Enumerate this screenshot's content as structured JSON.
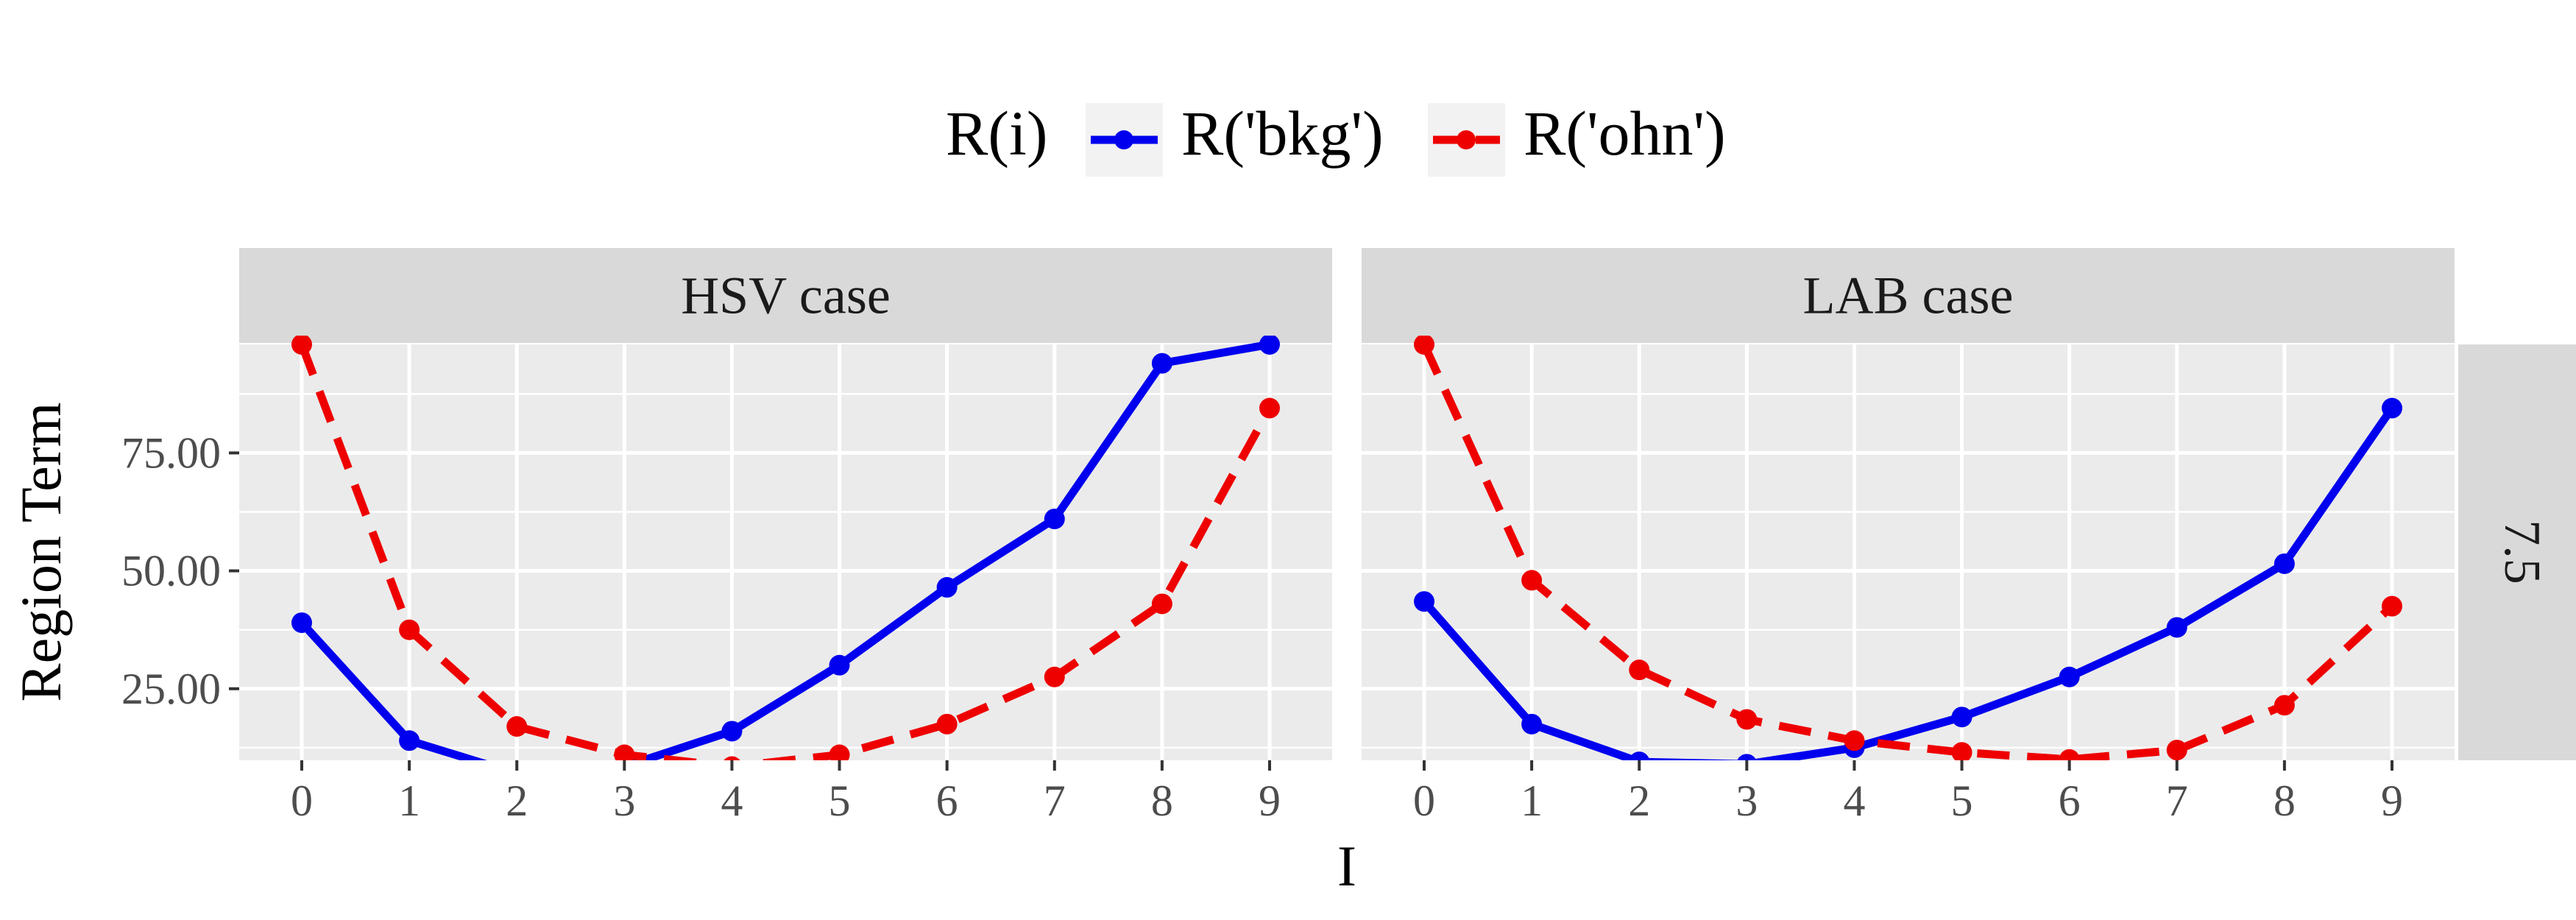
{
  "chart_data": {
    "type": "line",
    "xlabel": "I",
    "ylabel": "Region Term",
    "x": [
      0,
      1,
      2,
      3,
      4,
      5,
      6,
      7,
      8,
      9
    ],
    "x_ticks": [
      "0",
      "1",
      "2",
      "3",
      "4",
      "5",
      "6",
      "7",
      "8",
      "9"
    ],
    "y_ticks": [
      25,
      50,
      75
    ],
    "y_tick_labels": [
      "25.00",
      "50.00",
      "75.00"
    ],
    "ylim": [
      0,
      100
    ],
    "grid": true,
    "legend": {
      "position": "top",
      "title": "R(i)",
      "entries": [
        "R('bkg')",
        "R('ohn')"
      ]
    },
    "strip_right": "7.5",
    "colors": {
      "bkg": "#0000ee",
      "ohn": "#ee0000"
    },
    "panels": [
      {
        "title": "HSV case",
        "series": [
          {
            "name": "R('bkg')",
            "values": [
              39.0,
              14.0,
              7.0,
              8.5,
              16.0,
              30.0,
              46.5,
              61.0,
              94.0,
              98.0
            ]
          },
          {
            "name": "R('ohn')",
            "values": [
              98.0,
              37.5,
              17.0,
              11.0,
              8.5,
              11.0,
              17.5,
              27.5,
              43.0,
              84.5
            ]
          }
        ]
      },
      {
        "title": "LAB case",
        "series": [
          {
            "name": "R('bkg')",
            "values": [
              43.5,
              17.5,
              9.5,
              9.0,
              12.5,
              19.0,
              27.5,
              38.0,
              51.5,
              84.5
            ]
          },
          {
            "name": "R('ohn')",
            "values": [
              98.0,
              48.0,
              29.0,
              18.5,
              14.0,
              11.5,
              10.0,
              12.0,
              21.5,
              42.5
            ]
          }
        ]
      }
    ]
  }
}
